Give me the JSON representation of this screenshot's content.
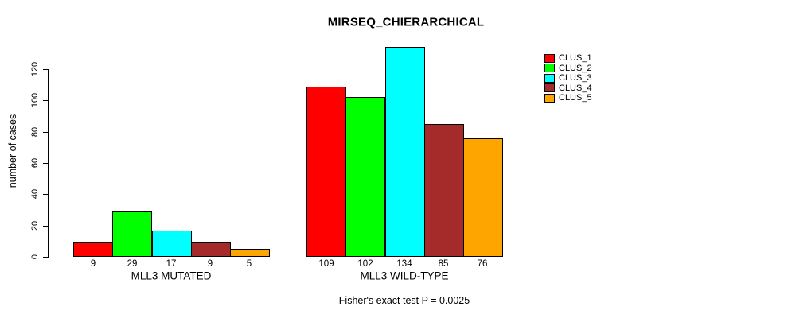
{
  "chart_data": {
    "type": "bar",
    "title": "MIRSEQ_CHIERARCHICAL",
    "ylabel": "number of cases",
    "xlabel": "",
    "ylim": [
      0,
      134
    ],
    "yticks": [
      0,
      20,
      40,
      60,
      80,
      100,
      120
    ],
    "grid": false,
    "legend_position": "right-outside",
    "bar_value_labels_shown": true,
    "categories": [
      "MLL3 MUTATED",
      "MLL3 WILD-TYPE"
    ],
    "series": [
      {
        "name": "CLUS_1",
        "color": "#FF0000",
        "values": [
          9,
          109
        ]
      },
      {
        "name": "CLUS_2",
        "color": "#00FF00",
        "values": [
          29,
          102
        ]
      },
      {
        "name": "CLUS_3",
        "color": "#00FFFF",
        "values": [
          17,
          134
        ]
      },
      {
        "name": "CLUS_4",
        "color": "#A52A2A",
        "values": [
          9,
          85
        ]
      },
      {
        "name": "CLUS_5",
        "color": "#FFA500",
        "values": [
          5,
          76
        ]
      }
    ],
    "annotation": "Fisher's exact test P = 0.0025",
    "background_color": "#FFFFFF",
    "axis_color": "#000000"
  }
}
